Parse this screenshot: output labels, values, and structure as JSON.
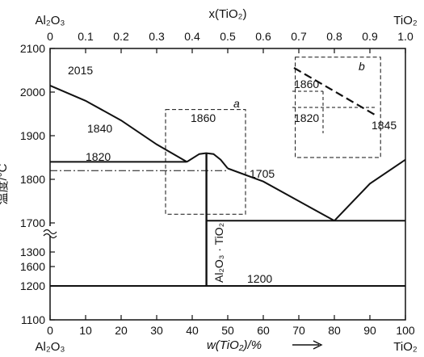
{
  "top_axis": {
    "label_left": "Al₂O₃",
    "label_center": "x(TiO₂)",
    "label_right": "TiO₂",
    "ticks": [
      "0",
      "0.1",
      "0.2",
      "0.3",
      "0.4",
      "0.5",
      "0.6",
      "0.7",
      "0.8",
      "0.9",
      "1.0"
    ]
  },
  "bottom_axis": {
    "label_left": "Al₂O₃",
    "label_center": "w(TiO₂)/%",
    "label_right": "TiO₂",
    "ticks": [
      "0",
      "10",
      "20",
      "30",
      "40",
      "50",
      "60",
      "70",
      "80",
      "90",
      "100"
    ]
  },
  "left_axis": {
    "label": "温度/°C",
    "ticks_upper": [
      "2100",
      "2000",
      "1900",
      "1800",
      "1700",
      "1600"
    ],
    "ticks_lower": [
      "1300",
      "1200",
      "1100"
    ]
  },
  "annotations": {
    "t2015": "2015",
    "t1840": "1840",
    "t1820": "1820",
    "t1860": "1860",
    "t1705": "1705",
    "t1845": "1845",
    "t1200": "1200",
    "box_a": "a",
    "box_b": "b",
    "inset_1860": "1860",
    "inset_1820": "1820",
    "compound": "Al₂O₃ · TiO₂"
  },
  "chart_data": {
    "type": "line",
    "xlabel": "w(TiO₂)/%",
    "xlim": [
      0,
      100
    ],
    "ylim": [
      1100,
      2100
    ],
    "top_xlim": [
      0,
      1.0
    ],
    "axis_break": "between 1300 and 1600",
    "series": [
      {
        "x": [
          0,
          10,
          20,
          30,
          38.5
        ],
        "y": [
          2015,
          1980,
          1935,
          1880,
          1840
        ]
      },
      {
        "x": [
          38.5,
          42,
          44,
          46,
          48,
          50
        ],
        "y": [
          1840,
          1858,
          1860,
          1858,
          1845,
          1825
        ]
      },
      {
        "x": [
          50,
          60,
          70,
          80
        ],
        "y": [
          1825,
          1795,
          1750,
          1705
        ]
      },
      {
        "x": [
          80,
          90,
          100
        ],
        "y": [
          1705,
          1790,
          1845
        ]
      }
    ],
    "horizontal_lines": [
      {
        "y": 1840,
        "x": [
          0,
          38.5
        ]
      },
      {
        "y": 1820,
        "x": [
          0,
          50
        ],
        "style": "dash-dot"
      },
      {
        "y": 1705,
        "x": [
          44,
          100
        ]
      },
      {
        "y": 1200,
        "x": [
          0,
          100
        ]
      }
    ],
    "vertical_lines": [
      {
        "x": 44,
        "y": [
          1200,
          1860
        ]
      }
    ],
    "dashed_boxes": [
      {
        "label": "a",
        "x": [
          32.5,
          55
        ],
        "y": [
          1720,
          1960
        ]
      },
      {
        "label": "b",
        "x": [
          69,
          93
        ],
        "y": [
          1850,
          2080
        ]
      }
    ],
    "points": [
      {
        "label": "2015",
        "x": 0,
        "y": 2015
      },
      {
        "label": "1860",
        "x": 44,
        "y": 1860
      },
      {
        "label": "1705",
        "x": 80,
        "y": 1705
      },
      {
        "label": "1845",
        "x": 100,
        "y": 1845
      },
      {
        "label": "1200",
        "x": 50,
        "y": 1200
      }
    ]
  }
}
